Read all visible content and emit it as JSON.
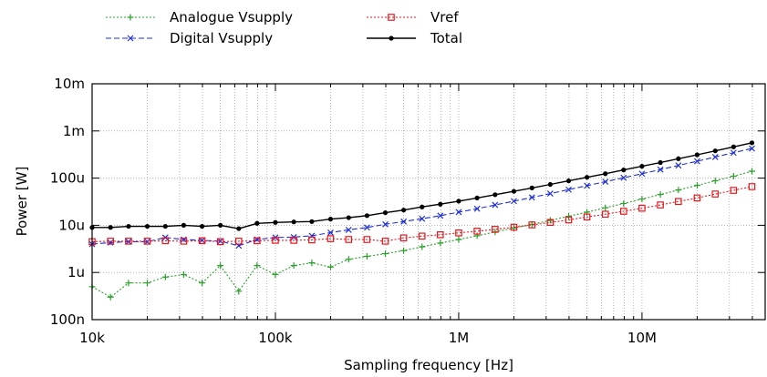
{
  "chart_data": {
    "type": "line",
    "title": "",
    "xlabel": "Sampling frequency [Hz]",
    "ylabel": "Power [W]",
    "xscale": "log",
    "yscale": "log",
    "xlim": [
      10000,
      47000000
    ],
    "ylim": [
      1e-07,
      0.01
    ],
    "x_ticks": [
      {
        "value": 10000,
        "label": "10k"
      },
      {
        "value": 100000,
        "label": "100k"
      },
      {
        "value": 1000000,
        "label": "1M"
      },
      {
        "value": 10000000,
        "label": "10M"
      }
    ],
    "y_ticks": [
      {
        "value": 1e-07,
        "label": "100n"
      },
      {
        "value": 1e-06,
        "label": "1u"
      },
      {
        "value": 1e-05,
        "label": "10u"
      },
      {
        "value": 0.0001,
        "label": "100u"
      },
      {
        "value": 0.001,
        "label": "1m"
      },
      {
        "value": 0.01,
        "label": "10m"
      }
    ],
    "grid": true,
    "legend_position": "top",
    "x": [
      10000,
      12600,
      15800,
      20000,
      25100,
      31600,
      39800,
      50100,
      63100,
      79400,
      100000,
      126000,
      158000,
      200000,
      251000,
      316000,
      398000,
      501000,
      631000,
      794000,
      1000000,
      1260000,
      1580000,
      2000000,
      2510000,
      3160000,
      3980000,
      5010000,
      6310000,
      7940000,
      10000000,
      12600000,
      15800000,
      20000000,
      25100000,
      31600000,
      39800000
    ],
    "series": [
      {
        "name": "Analogue Vsupply",
        "color": "#2ca02c",
        "dash": "2,2",
        "marker": "plus",
        "values": [
          5e-07,
          3e-07,
          6e-07,
          6e-07,
          8e-07,
          9e-07,
          6e-07,
          1.4e-06,
          4e-07,
          1.4e-06,
          9e-07,
          1.4e-06,
          1.6e-06,
          1.3e-06,
          1.9e-06,
          2.2e-06,
          2.5e-06,
          2.9e-06,
          3.5e-06,
          4.2e-06,
          5e-06,
          6e-06,
          7.2e-06,
          8.7e-06,
          1.05e-05,
          1.27e-05,
          1.55e-05,
          1.9e-05,
          2.35e-05,
          2.9e-05,
          3.6e-05,
          4.5e-05,
          5.6e-05,
          7e-05,
          8.8e-05,
          0.00011,
          0.00014
        ]
      },
      {
        "name": "Digital Vsupply",
        "color": "#1f2fd6",
        "dash": "6,3",
        "marker": "x",
        "values": [
          4e-06,
          4.3e-06,
          4.5e-06,
          4.5e-06,
          5.5e-06,
          5e-06,
          4.8e-06,
          4.6e-06,
          3.7e-06,
          5e-06,
          5.5e-06,
          5.6e-06,
          6e-06,
          7e-06,
          8e-06,
          9e-06,
          1.05e-05,
          1.2e-05,
          1.38e-05,
          1.6e-05,
          1.9e-05,
          2.25e-05,
          2.7e-05,
          3.25e-05,
          3.9e-05,
          4.7e-05,
          5.7e-05,
          6.9e-05,
          8.4e-05,
          0.000102,
          0.000124,
          0.000152,
          0.000186,
          0.000228,
          0.00028,
          0.000345,
          0.000425
        ]
      },
      {
        "name": "Vref",
        "color": "#e8161c",
        "dash": "2,2",
        "marker": "square",
        "values": [
          4.5e-06,
          4.6e-06,
          4.6e-06,
          4.6e-06,
          4.7e-06,
          4.6e-06,
          4.7e-06,
          4.5e-06,
          4.6e-06,
          4.7e-06,
          4.8e-06,
          4.8e-06,
          4.9e-06,
          5.2e-06,
          5e-06,
          5e-06,
          4.6e-06,
          5.4e-06,
          5.9e-06,
          6.3e-06,
          6.9e-06,
          7.5e-06,
          8.2e-06,
          9.1e-06,
          1.02e-05,
          1.15e-05,
          1.3e-05,
          1.5e-05,
          1.72e-05,
          1.98e-05,
          2.3e-05,
          2.7e-05,
          3.2e-05,
          3.8e-05,
          4.6e-05,
          5.5e-05,
          6.6e-05
        ]
      },
      {
        "name": "Total",
        "color": "#000000",
        "dash": "",
        "marker": "dot",
        "values": [
          9e-06,
          9e-06,
          9.5e-06,
          9.5e-06,
          9.5e-06,
          1e-05,
          9.5e-06,
          1e-05,
          8.5e-06,
          1.1e-05,
          1.15e-05,
          1.18e-05,
          1.2e-05,
          1.35e-05,
          1.45e-05,
          1.6e-05,
          1.85e-05,
          2.1e-05,
          2.45e-05,
          2.8e-05,
          3.25e-05,
          3.8e-05,
          4.45e-05,
          5.25e-05,
          6.2e-05,
          7.35e-05,
          8.75e-05,
          0.000104,
          0.000124,
          0.000149,
          0.000178,
          0.000214,
          0.000258,
          0.000312,
          0.000378,
          0.00046,
          0.00056
        ]
      }
    ]
  }
}
